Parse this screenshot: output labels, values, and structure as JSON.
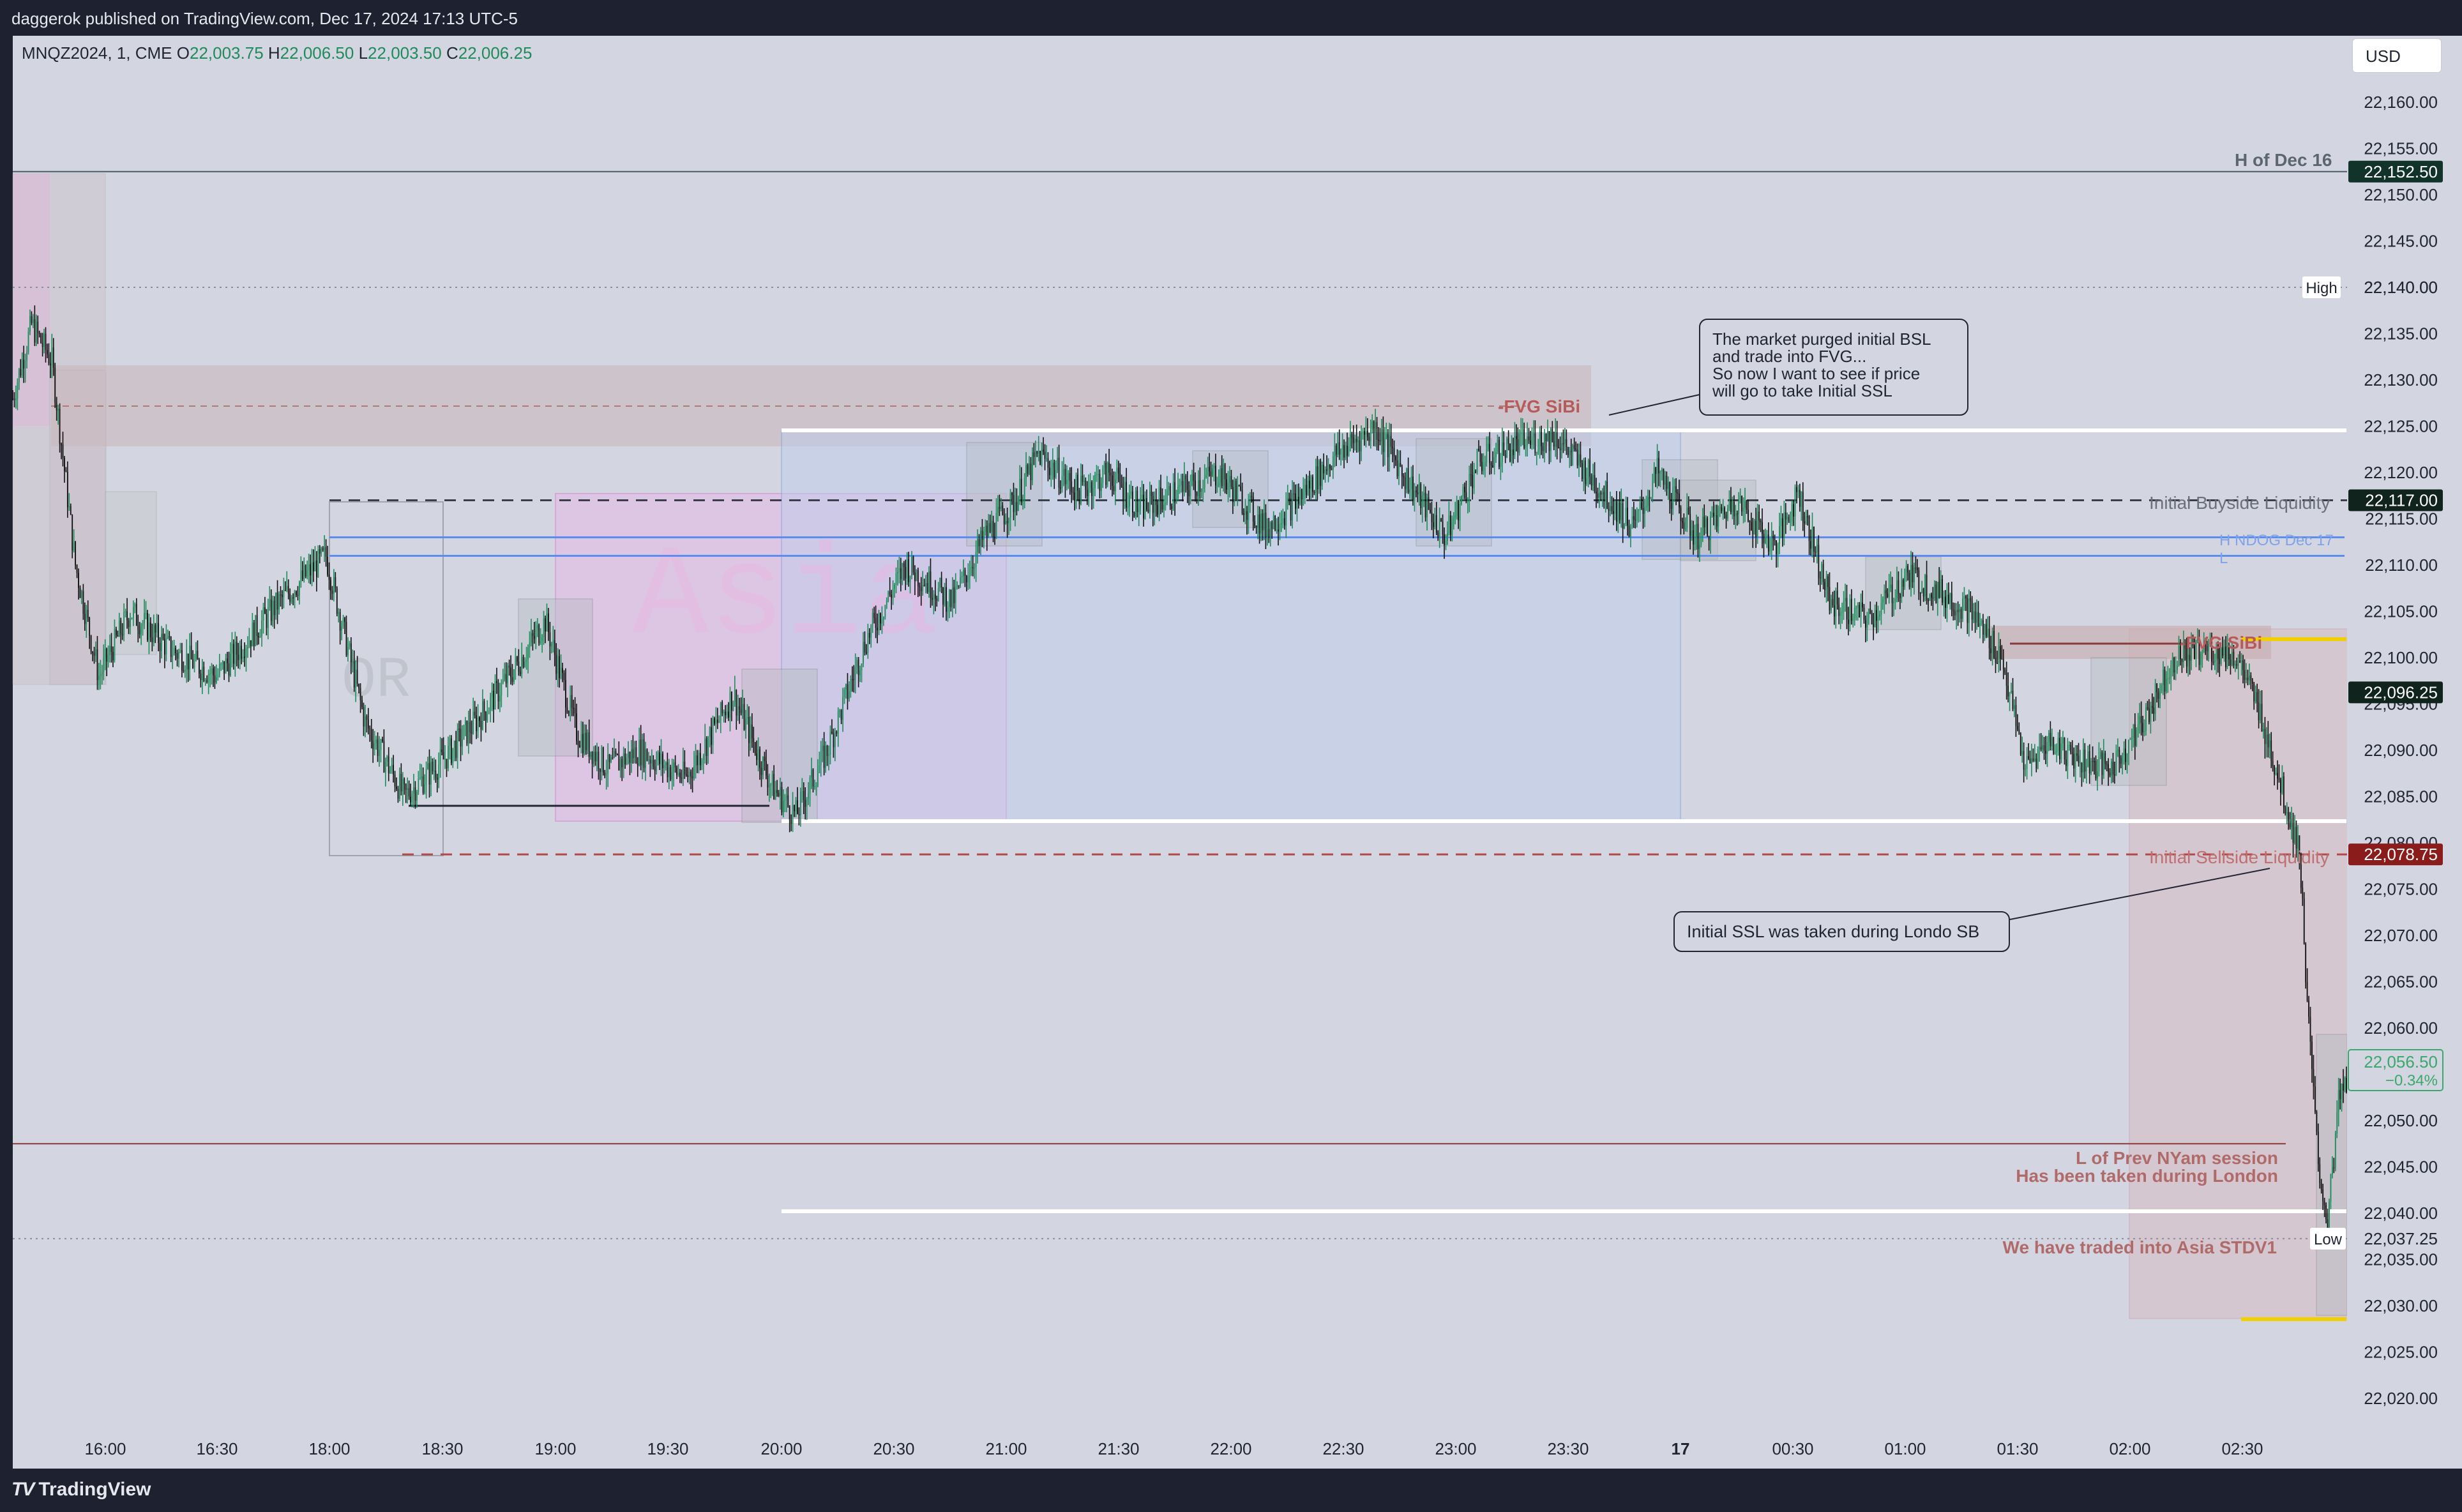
{
  "header": {
    "text": "daggerok published on TradingView.com, Dec 17, 2024 17:13 UTC-5"
  },
  "symbol": {
    "name": "MNQZ2024, 1, CME",
    "o_label": "O",
    "o": "22,003.75",
    "h_label": "H",
    "h": "22,006.50",
    "l_label": "L",
    "l": "22,003.50",
    "c_label": "C",
    "c": "22,006.25"
  },
  "currency_button": "USD",
  "footer": {
    "brand": "TradingView"
  },
  "colors": {
    "background": "#d3d6e0",
    "up": "#1f8a5b",
    "down": "#111111",
    "bsl": "#3a3f4a",
    "ssl": "#b04a4a",
    "ndog": "#5b8cf0",
    "fvg_text": "#b75a5a",
    "range_line": "#ffffff",
    "yellow": "#f0d000"
  },
  "chart_data": {
    "type": "candlestick",
    "symbol": "MNQZ2024",
    "timeframe": "1",
    "ylim": [
      22018,
      22163
    ],
    "y_ticks": [
      "22,020.00",
      "22,025.00",
      "22,030.00",
      "22,035.00",
      "22,040.00",
      "22,045.00",
      "22,050.00",
      "22,055.00",
      "22,060.00",
      "22,065.00",
      "22,070.00",
      "22,075.00",
      "22,080.00",
      "22,085.00",
      "22,090.00",
      "22,095.00",
      "22,100.00",
      "22,105.00",
      "22,110.00",
      "22,115.00",
      "22,120.00",
      "22,125.00",
      "22,130.00",
      "22,135.00",
      "22,140.00",
      "22,145.00",
      "22,150.00",
      "22,155.00",
      "22,160.00"
    ],
    "x_ticks": [
      "16:00",
      "16:30",
      "18:00",
      "18:30",
      "19:00",
      "19:30",
      "20:00",
      "20:30",
      "21:00",
      "21:30",
      "22:00",
      "22:30",
      "23:00",
      "23:30",
      "17",
      "00:30",
      "01:00",
      "01:30",
      "02:00",
      "02:30"
    ],
    "price_path": [
      [
        0,
        22128
      ],
      [
        12,
        22136
      ],
      [
        25,
        22132
      ],
      [
        40,
        22110
      ],
      [
        55,
        22098
      ],
      [
        75,
        22105
      ],
      [
        100,
        22101
      ],
      [
        130,
        22098
      ],
      [
        170,
        22106
      ],
      [
        200,
        22111
      ],
      [
        225,
        22093
      ],
      [
        250,
        22085
      ],
      [
        275,
        22089
      ],
      [
        300,
        22094
      ],
      [
        325,
        22100
      ],
      [
        340,
        22104
      ],
      [
        360,
        22092
      ],
      [
        380,
        22088
      ],
      [
        400,
        22090
      ],
      [
        430,
        22087
      ],
      [
        460,
        22096
      ],
      [
        485,
        22086
      ],
      [
        500,
        22083
      ],
      [
        520,
        22090
      ],
      [
        545,
        22102
      ],
      [
        570,
        22110
      ],
      [
        600,
        22106
      ],
      [
        620,
        22113
      ],
      [
        640,
        22117
      ],
      [
        655,
        22122
      ],
      [
        680,
        22118
      ],
      [
        700,
        22120
      ],
      [
        720,
        22116
      ],
      [
        745,
        22118
      ],
      [
        770,
        22120
      ],
      [
        800,
        22114
      ],
      [
        820,
        22117
      ],
      [
        845,
        22122
      ],
      [
        870,
        22125
      ],
      [
        895,
        22118
      ],
      [
        915,
        22113
      ],
      [
        935,
        22121
      ],
      [
        960,
        22123
      ],
      [
        985,
        22124
      ],
      [
        1010,
        22119
      ],
      [
        1035,
        22114
      ],
      [
        1050,
        22120
      ],
      [
        1075,
        22113
      ],
      [
        1100,
        22117
      ],
      [
        1125,
        22112
      ],
      [
        1140,
        22118
      ],
      [
        1160,
        22106
      ],
      [
        1185,
        22104
      ],
      [
        1210,
        22109
      ],
      [
        1230,
        22107
      ],
      [
        1250,
        22105
      ],
      [
        1270,
        22100
      ],
      [
        1285,
        22088
      ],
      [
        1300,
        22091
      ],
      [
        1320,
        22089
      ],
      [
        1340,
        22088
      ],
      [
        1360,
        22093
      ],
      [
        1380,
        22100
      ],
      [
        1400,
        22101
      ],
      [
        1420,
        22100
      ],
      [
        1435,
        22094
      ],
      [
        1450,
        22085
      ],
      [
        1460,
        22079
      ],
      [
        1466,
        22060
      ],
      [
        1472,
        22045
      ],
      [
        1478,
        22039
      ],
      [
        1485,
        22052
      ],
      [
        1495,
        22056
      ]
    ],
    "series": [
      {
        "name": "Initial Buyside Liquidity",
        "y": 22117
      },
      {
        "name": "Initial Sellside Liquidity",
        "y": 22078.75
      },
      {
        "name": "H of Dec 16",
        "y": 22152.5
      },
      {
        "name": "H NDOG Dec 17",
        "y": 22113
      },
      {
        "name": "L",
        "y": 22111
      },
      {
        "name": "L of Prev NYam session",
        "y": 22047.5
      },
      {
        "name": "High",
        "y": 22140
      },
      {
        "name": "Low",
        "y": 22037.25
      }
    ],
    "price_labels": {
      "h_dec16": "22,152.50",
      "high": "22,140.00",
      "bsl": "22,117.00",
      "current": "22,096.25",
      "ssl": "22,078.75",
      "last": "22,056.50",
      "last_pct": "−0.34%",
      "low": "22,037.25"
    },
    "annotations": {
      "fvg1": "-FVG SiBi",
      "fvg2": "-FVG SiBi",
      "bsl": "Initial Buyside Liquidity",
      "ssl": "Initial Sellside Liquidity",
      "h_dec16": "H of Dec 16",
      "ndog_h": "H NDOG Dec 17",
      "ndog_l": "L",
      "high": "High",
      "low": "Low",
      "asia_watermark": "Asia",
      "or_watermark": "OR",
      "prev_nyam_1": "L of Prev NYam session",
      "prev_nyam_2": "Has been taken during London",
      "asia_stdv": "We have traded into Asia STDV1",
      "callout1": [
        "The market purged initial BSL",
        "and trade into FVG...",
        "So now I want to see if price",
        "will go to take Initial SSL"
      ],
      "callout2": "Initial SSL was taken during Londo SB"
    },
    "grid": false
  }
}
